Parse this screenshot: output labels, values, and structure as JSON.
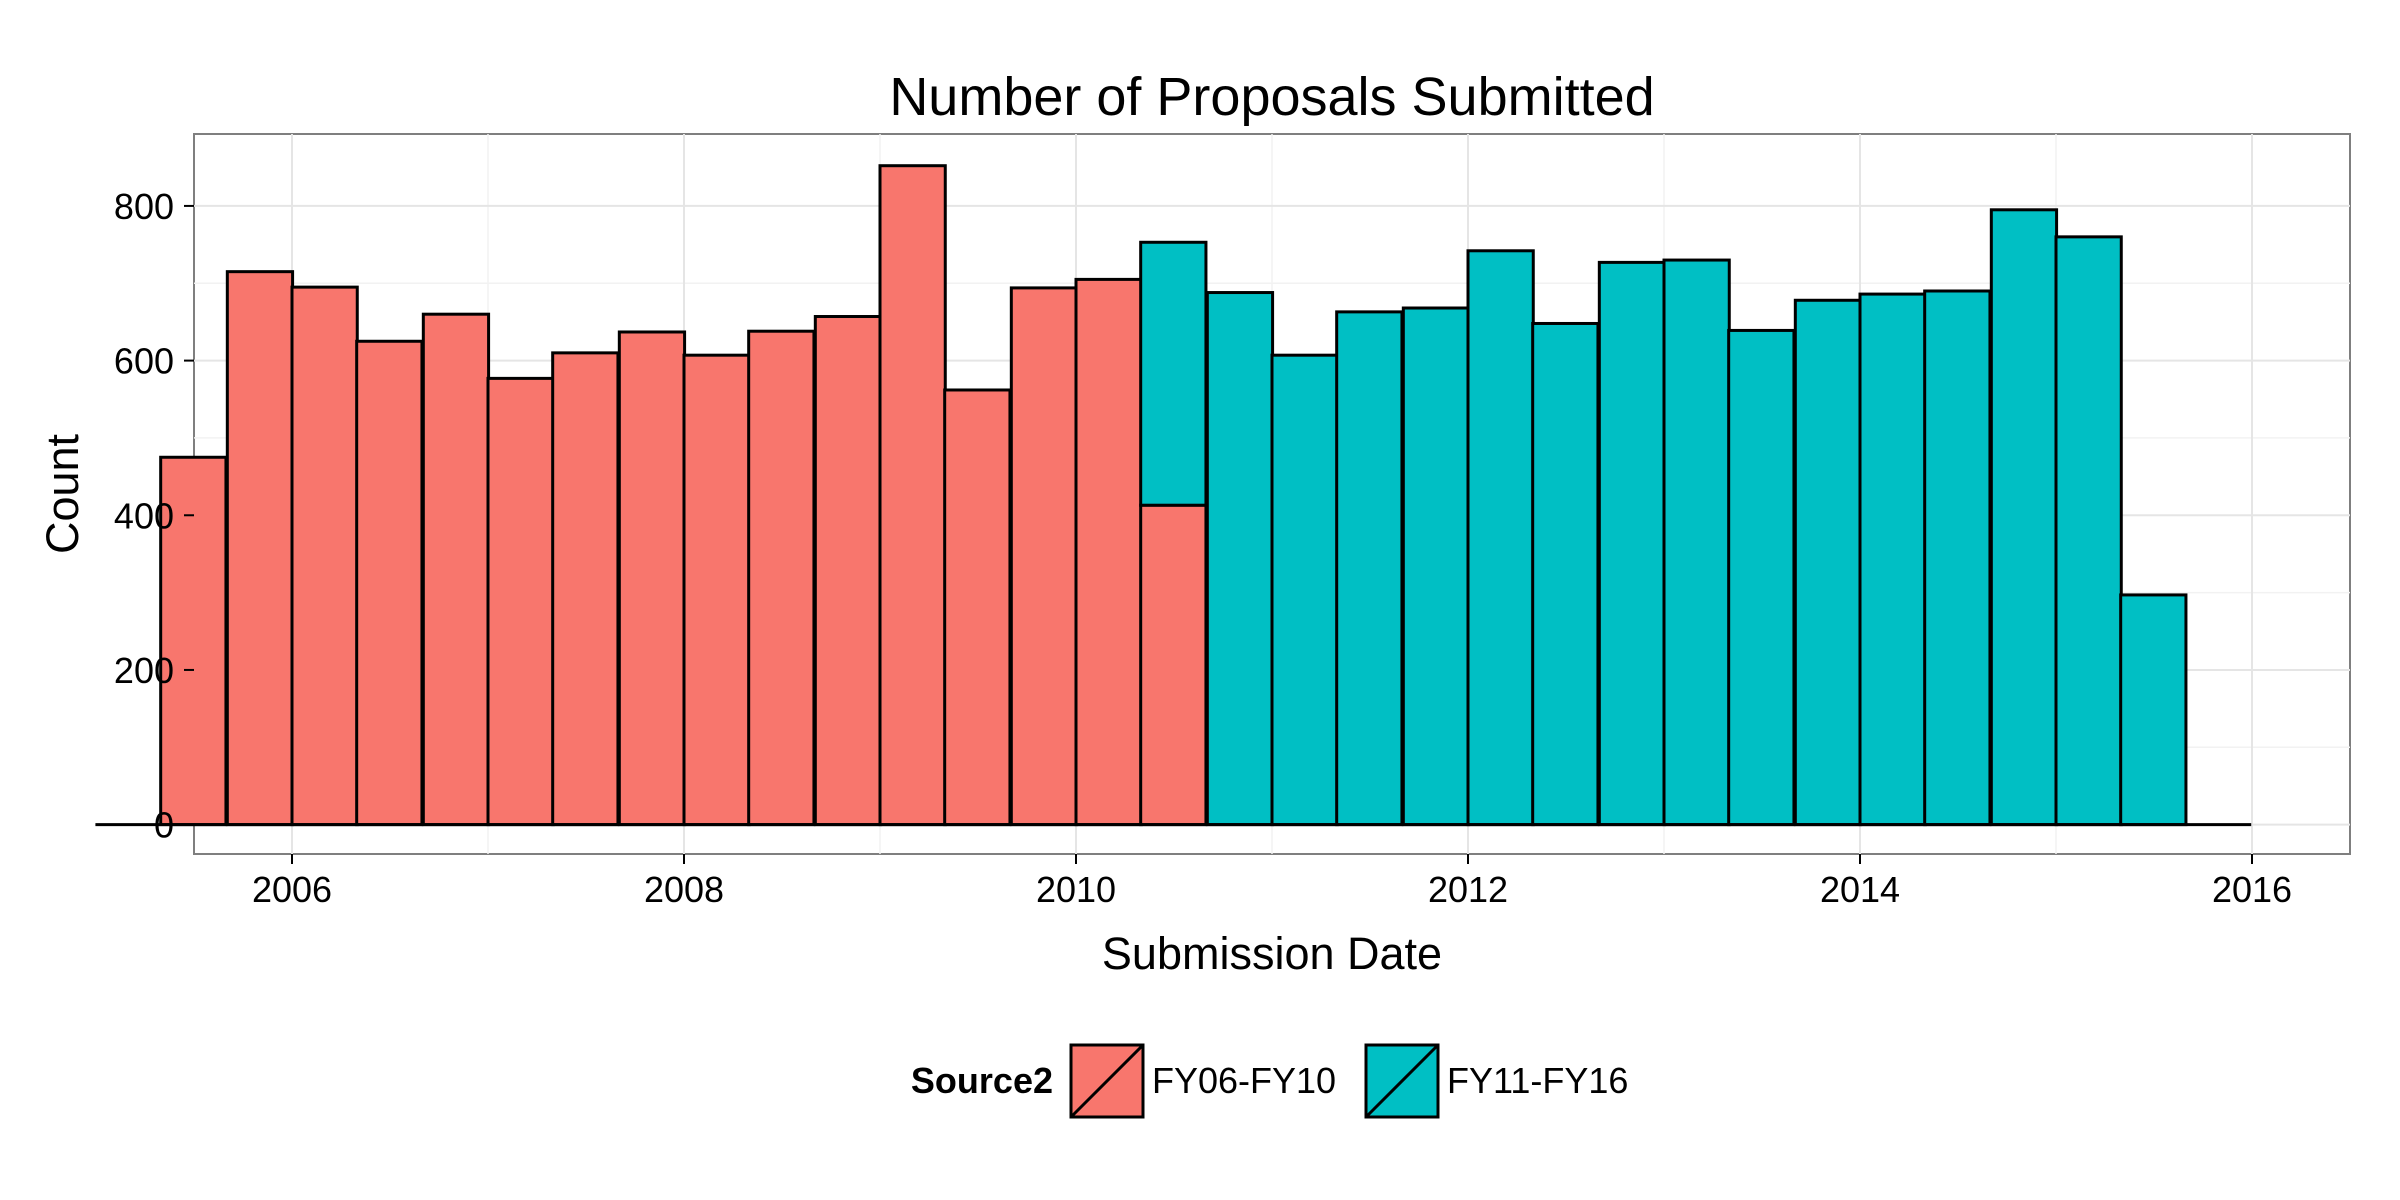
{
  "chart_data": {
    "type": "bar",
    "title": "Number of Proposals Submitted",
    "xlabel": "Submission Date",
    "ylabel": "Count",
    "xlim": [
      2005.5,
      2016.5
    ],
    "ylim": [
      -38,
      893
    ],
    "x_ticks": [
      2006,
      2008,
      2010,
      2012,
      2014,
      2016
    ],
    "y_ticks": [
      0,
      200,
      400,
      600,
      800
    ],
    "grid": true,
    "stacked": true,
    "bin_width": 0.333,
    "bin_starts": [
      2005.33,
      2005.67,
      2006.0,
      2006.33,
      2006.67,
      2007.0,
      2007.33,
      2007.67,
      2008.0,
      2008.33,
      2008.67,
      2009.0,
      2009.33,
      2009.67,
      2010.0,
      2010.33,
      2010.67,
      2011.0,
      2011.33,
      2011.67,
      2012.0,
      2012.33,
      2012.67,
      2013.0,
      2013.33,
      2013.67,
      2014.0,
      2014.33,
      2014.67,
      2015.0,
      2015.33
    ],
    "series": [
      {
        "name": "FY06-FY10",
        "color": "#F8766D",
        "values": [
          475,
          715,
          695,
          625,
          660,
          577,
          610,
          637,
          607,
          638,
          657,
          852,
          562,
          694,
          705,
          413,
          0,
          0,
          0,
          0,
          0,
          0,
          0,
          0,
          0,
          0,
          0,
          0,
          0,
          0,
          0
        ]
      },
      {
        "name": "FY11-FY16",
        "color": "#00BFC4",
        "values": [
          0,
          0,
          0,
          0,
          0,
          0,
          0,
          0,
          0,
          0,
          0,
          0,
          0,
          0,
          0,
          340,
          688,
          607,
          663,
          668,
          742,
          648,
          727,
          730,
          639,
          678,
          686,
          690,
          795,
          760,
          297
        ]
      }
    ],
    "legend": {
      "title": "Source2",
      "position": "bottom"
    }
  }
}
